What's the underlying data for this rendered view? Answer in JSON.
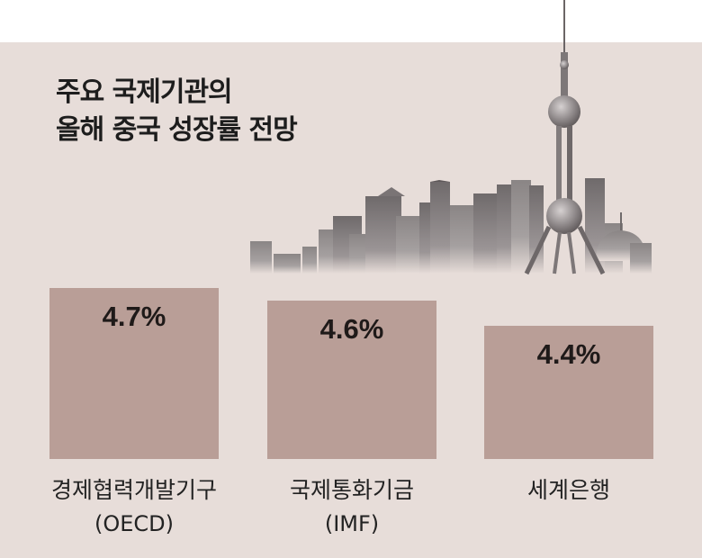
{
  "chart_data": {
    "type": "bar",
    "title_lines": [
      "주요 국제기관의",
      "올해 중국 성장률 전망"
    ],
    "categories": [
      {
        "name": "경제협력개발기구",
        "abbr": "(OECD)"
      },
      {
        "name": "국제통화기금",
        "abbr": "(IMF)"
      },
      {
        "name": "세계은행",
        "abbr": ""
      }
    ],
    "values": [
      4.7,
      4.6,
      4.4
    ],
    "value_labels": [
      "4.7%",
      "4.6%",
      "4.4%"
    ],
    "unit": "%",
    "bar_color": "#b99e97",
    "background_color": "#e7ddd9",
    "grid": false,
    "legend": "none",
    "illustration": "skyline-illustration"
  }
}
